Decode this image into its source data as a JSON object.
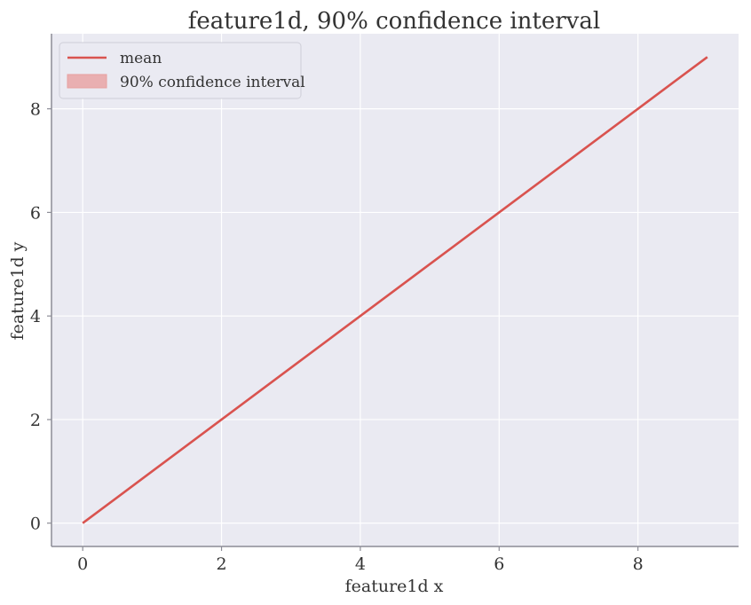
{
  "chart_data": {
    "type": "line",
    "title": "feature1d, 90% confidence interval",
    "xlabel": "feature1d x",
    "ylabel": "feature1d y",
    "xlim": [
      -0.45,
      9.45
    ],
    "ylim": [
      -0.45,
      9.45
    ],
    "xticks": [
      0,
      2,
      4,
      6,
      8
    ],
    "yticks": [
      0,
      2,
      4,
      6,
      8
    ],
    "grid": true,
    "legend_position": "top-left",
    "series": [
      {
        "name": "mean",
        "x": [
          0,
          1,
          2,
          3,
          4,
          5,
          6,
          7,
          8,
          9
        ],
        "y": [
          0,
          1,
          2,
          3,
          4,
          5,
          6,
          7,
          8,
          9
        ],
        "color": "#d9534f"
      }
    ],
    "bands": [
      {
        "name": "90% confidence interval",
        "x": [
          0,
          1,
          2,
          3,
          4,
          5,
          6,
          7,
          8,
          9
        ],
        "lower": [
          0,
          1,
          2,
          3,
          4,
          5,
          6,
          7,
          8,
          9
        ],
        "upper": [
          0,
          1,
          2,
          3,
          4,
          5,
          6,
          7,
          8,
          9
        ],
        "color": "#e8a0a0"
      }
    ],
    "colors": {
      "plot_background": "#eaeaf2",
      "grid": "#ffffff",
      "axis": "#8c8c96"
    }
  }
}
